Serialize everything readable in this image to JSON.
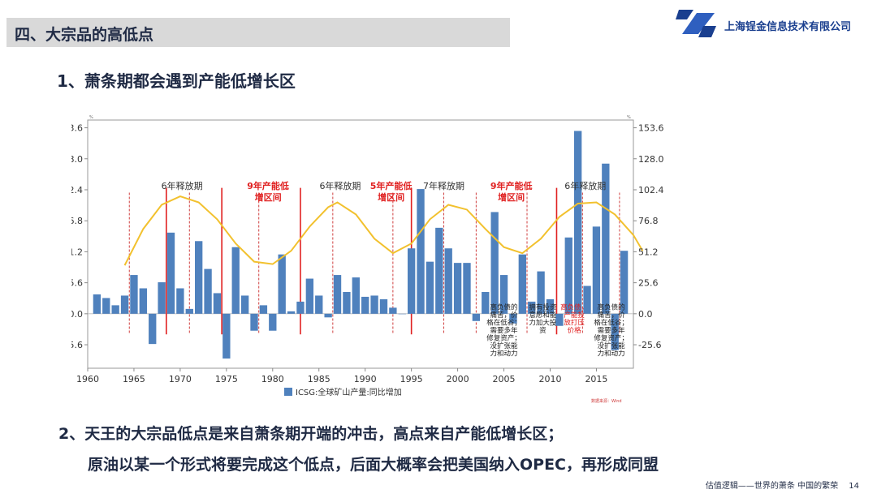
{
  "header": {
    "section_title": "四、大宗品的高低点",
    "company_name": "上海锃金信息技术有限公司"
  },
  "main": {
    "point1": "1、萧条期都会遇到产能低增长区",
    "point2_line1": "2、天王的大宗品低点是来自萧条期开端的冲击，高点来自产能低增长区；",
    "point2_line2": "原油以某一个形式将要完成这个低点，后面大概率会把美国纳入OPEC，再形成同盟"
  },
  "footer": {
    "text": "估值逻辑——世界的萧条 中国的繁荣",
    "page": "14"
  },
  "colors": {
    "bar": "#4f81bd",
    "sine": "#f2c12e",
    "solid_line": "#e02020",
    "dashed_line": "#d04040",
    "red_text": "#e02020"
  },
  "chart_data": {
    "type": "bar",
    "unit_left": "%",
    "unit_right": "%",
    "x_range": [
      1960,
      2019
    ],
    "x_ticks": [
      "1960",
      "1965",
      "1970",
      "1975",
      "1980",
      "1985",
      "1990",
      "1995",
      "2000",
      "2005",
      "2010",
      "2015"
    ],
    "y_range": [
      -45,
      160
    ],
    "y_ticks": [
      "153.6",
      "128.0",
      "102.4",
      "76.8",
      "51.2",
      "25.6",
      "0.0",
      "-25.6"
    ],
    "legend": "ICSG:全球矿山产量:同比增加",
    "source": "数据来源：Wind",
    "series": [
      {
        "name": "ICSG:全球矿山产量:同比增加",
        "years": [
          1961,
          1962,
          1963,
          1964,
          1965,
          1966,
          1967,
          1968,
          1969,
          1970,
          1971,
          1972,
          1973,
          1974,
          1975,
          1976,
          1977,
          1978,
          1979,
          1980,
          1981,
          1982,
          1983,
          1984,
          1985,
          1986,
          1987,
          1988,
          1989,
          1990,
          1991,
          1992,
          1993,
          1994,
          1995,
          1996,
          1997,
          1998,
          1999,
          2000,
          2001,
          2002,
          2003,
          2004,
          2005,
          2006,
          2007,
          2008,
          2009,
          2010,
          2011,
          2012,
          2013,
          2014,
          2015,
          2016,
          2017,
          2018
        ],
        "values": [
          16,
          13,
          7,
          15,
          32,
          21,
          -25,
          26,
          67,
          21,
          4,
          60,
          37,
          17,
          -37,
          55,
          15,
          -14,
          7,
          -14,
          49,
          2,
          10,
          29,
          15,
          -3,
          32,
          18,
          30,
          14,
          15,
          12,
          5,
          0,
          54,
          103,
          43,
          71,
          54,
          42,
          42,
          -6,
          18,
          84,
          32,
          -8,
          49,
          10,
          35,
          12,
          -10,
          63,
          151,
          23,
          72,
          124,
          -30,
          52
        ]
      }
    ],
    "annotations": [
      {
        "text": "6年释放期",
        "color": "black"
      },
      {
        "text": "9年产能低",
        "text2": "增区间",
        "color": "red"
      },
      {
        "text": "6年释放期",
        "color": "black"
      },
      {
        "text": "5年产能低",
        "text2": "增区间",
        "color": "red"
      },
      {
        "text": "7年释放期",
        "color": "black"
      },
      {
        "text": "9年产能低",
        "text2": "增区间",
        "color": "red"
      },
      {
        "text": "6年释放期",
        "color": "black"
      }
    ],
    "text_boxes": [
      {
        "lines": [
          "高负债的",
          "痛苦，价",
          "格在低谷；",
          "需要多年",
          "修复资产；",
          "没扩张能",
          "力和动力"
        ],
        "color": "black"
      },
      {
        "lines": [
          "拥有投资",
          "意愿和能",
          "力加大投",
          "资"
        ],
        "color": "black"
      },
      {
        "lines": [
          "高负债，",
          "产能投",
          "放打压",
          "价格"
        ],
        "color": "red"
      },
      {
        "lines": [
          "高负债的",
          "痛苦，价",
          "格在低谷；",
          "需要多年",
          "修复资产；",
          "没扩张能",
          "力和动力"
        ],
        "color": "black"
      }
    ],
    "solid_lines": [
      1968.5,
      1974.5,
      1983.0,
      1995.0,
      2010.7
    ],
    "dashed_lines": [
      1964.5,
      1971.0,
      1978.5,
      1986.5,
      1993.0,
      1998.5,
      2002.0,
      2007.5,
      2013.5,
      2017.5
    ],
    "sine_series": [
      {
        "x": 1964,
        "y": 40
      },
      {
        "x": 1966,
        "y": 70
      },
      {
        "x": 1968,
        "y": 90
      },
      {
        "x": 1970,
        "y": 97
      },
      {
        "x": 1972,
        "y": 92
      },
      {
        "x": 1974,
        "y": 78
      },
      {
        "x": 1976,
        "y": 58
      },
      {
        "x": 1978,
        "y": 43
      },
      {
        "x": 1980,
        "y": 41
      },
      {
        "x": 1982,
        "y": 52
      },
      {
        "x": 1984,
        "y": 72
      },
      {
        "x": 1986,
        "y": 88
      },
      {
        "x": 1987,
        "y": 92
      },
      {
        "x": 1989,
        "y": 82
      },
      {
        "x": 1991,
        "y": 62
      },
      {
        "x": 1993,
        "y": 50
      },
      {
        "x": 1995,
        "y": 58
      },
      {
        "x": 1997,
        "y": 78
      },
      {
        "x": 1999,
        "y": 90
      },
      {
        "x": 2001,
        "y": 86
      },
      {
        "x": 2003,
        "y": 70
      },
      {
        "x": 2005,
        "y": 55
      },
      {
        "x": 2007,
        "y": 50
      },
      {
        "x": 2009,
        "y": 62
      },
      {
        "x": 2011,
        "y": 80
      },
      {
        "x": 2013,
        "y": 91
      },
      {
        "x": 2015,
        "y": 92
      },
      {
        "x": 2017,
        "y": 82
      },
      {
        "x": 2019,
        "y": 65
      },
      {
        "x": 2020,
        "y": 52
      }
    ]
  }
}
